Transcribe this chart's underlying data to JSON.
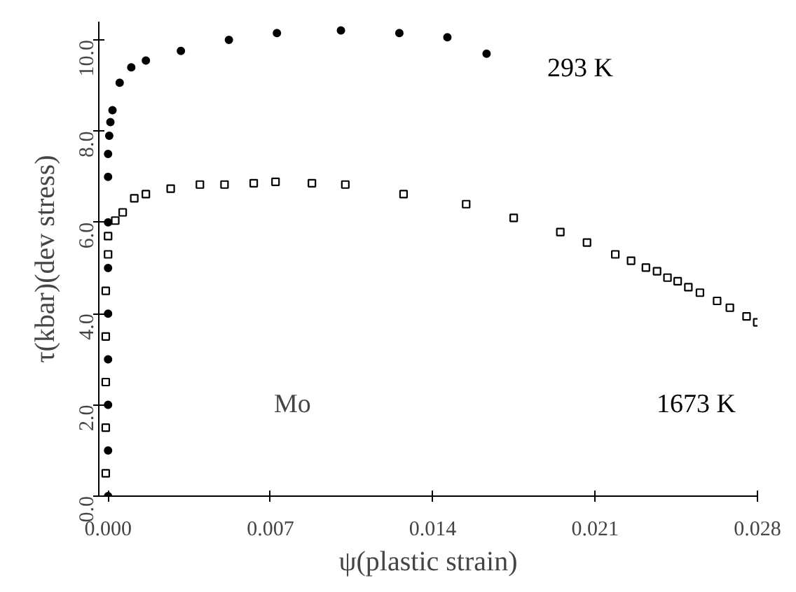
{
  "chart_data": {
    "type": "scatter",
    "xlabel": "ψ(plastic strain)",
    "ylabel": "τ(kbar)(dev stress)",
    "xlim": [
      -0.0004,
      0.028
    ],
    "ylim": [
      0,
      10.4
    ],
    "xticks": [
      {
        "value": 0,
        "label": "0.000"
      },
      {
        "value": 0.007,
        "label": "0.007"
      },
      {
        "value": 0.014,
        "label": "0.014"
      },
      {
        "value": 0.021,
        "label": "0.021"
      },
      {
        "value": 0.028,
        "label": "0.028"
      }
    ],
    "yticks": [
      {
        "value": 0,
        "label": "0.0"
      },
      {
        "value": 2,
        "label": "2.0"
      },
      {
        "value": 4,
        "label": "4.0"
      },
      {
        "value": 6,
        "label": "6.0"
      },
      {
        "value": 8,
        "label": "8.0"
      },
      {
        "value": 10,
        "label": "10.0"
      }
    ],
    "grid": false,
    "series": [
      {
        "name": "293 K",
        "color": "#000000",
        "marker": "circle",
        "x": [
          0,
          0,
          0,
          0,
          0,
          0,
          0,
          0,
          0,
          5e-05,
          0.0001,
          0.00019,
          0.0005,
          0.001,
          0.00163,
          0.00314,
          0.00521,
          0.00728,
          0.01004,
          0.01256,
          0.01463,
          0.01632
        ],
        "values": [
          0,
          1,
          2,
          3,
          4,
          5,
          6,
          7,
          7.5,
          7.9,
          8.2,
          8.46,
          9.06,
          9.4,
          9.55,
          9.76,
          10.0,
          10.15,
          10.21,
          10.15,
          10.06,
          9.7
        ]
      },
      {
        "name": "1673 K",
        "color": "#000000",
        "marker": "square",
        "x": [
          -0.0001,
          -0.0001,
          -0.0001,
          -0.0001,
          -0.0001,
          0,
          0,
          0.00031,
          0.00063,
          0.00113,
          0.00163,
          0.0027,
          0.00396,
          0.00502,
          0.00628,
          0.00722,
          0.00879,
          0.01023,
          0.01274,
          0.01544,
          0.01749,
          0.0195,
          0.02065,
          0.02187,
          0.02255,
          0.02319,
          0.02367,
          0.02412,
          0.02456,
          0.02502,
          0.02552,
          0.02626,
          0.02681,
          0.02753,
          0.02799
        ],
        "values": [
          0.5,
          1.5,
          2.5,
          3.5,
          4.5,
          5.3,
          5.7,
          6.04,
          6.22,
          6.53,
          6.62,
          6.74,
          6.83,
          6.83,
          6.86,
          6.89,
          6.86,
          6.83,
          6.62,
          6.4,
          6.1,
          5.79,
          5.56,
          5.3,
          5.16,
          5.01,
          4.93,
          4.79,
          4.71,
          4.58,
          4.46,
          4.28,
          4.13,
          3.94,
          3.81
        ]
      }
    ],
    "annotations": [
      "Mo"
    ]
  }
}
